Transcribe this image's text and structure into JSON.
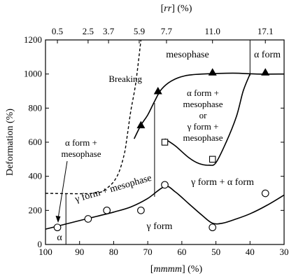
{
  "chart_data": {
    "type": "scatter",
    "title": "",
    "xlabel": "[mmmm] (%)",
    "xlabel_parts": [
      "[",
      "mmmm",
      "] (%)"
    ],
    "x2label": "[rr] (%)",
    "x2label_parts": [
      "[",
      "rr",
      "] (%)"
    ],
    "ylabel": "Deformation (%)",
    "xlim": [
      100,
      30
    ],
    "ylim": [
      0,
      1200
    ],
    "x_ticks": [
      100,
      90,
      80,
      70,
      60,
      50,
      40,
      30
    ],
    "y_ticks": [
      0,
      200,
      400,
      600,
      800,
      1000,
      1200
    ],
    "x2_ticks": [
      {
        "label": "0.5",
        "at": 96.5
      },
      {
        "label": "2.5",
        "at": 87.5
      },
      {
        "label": "3.7",
        "at": 81.5
      },
      {
        "label": "5.9",
        "at": 72.5
      },
      {
        "label": "7.7",
        "at": 64.5
      },
      {
        "label": "11.0",
        "at": 51.0
      },
      {
        "label": "17.1",
        "at": 35.5
      }
    ],
    "grid": false,
    "series": [
      {
        "marker": "circle-open",
        "points": [
          [
            96.5,
            100
          ],
          [
            87.5,
            150
          ],
          [
            82,
            200
          ],
          [
            72,
            200
          ],
          [
            65,
            350
          ],
          [
            51,
            100
          ],
          [
            35.5,
            300
          ]
        ]
      },
      {
        "marker": "square-open",
        "points": [
          [
            65,
            600
          ],
          [
            51,
            500
          ]
        ]
      },
      {
        "marker": "triangle-filled",
        "points": [
          [
            72,
            700
          ],
          [
            67,
            900
          ],
          [
            51,
            1010
          ],
          [
            35.5,
            1010
          ]
        ]
      }
    ],
    "lines": {
      "gamma_boundary": [
        [
          100,
          90
        ],
        [
          95,
          115
        ],
        [
          90,
          140
        ],
        [
          85,
          165
        ],
        [
          80,
          190
        ],
        [
          75,
          220
        ],
        [
          70,
          270
        ],
        [
          65,
          340
        ],
        [
          62,
          310
        ],
        [
          58,
          240
        ],
        [
          54,
          170
        ],
        [
          51,
          125
        ],
        [
          48,
          125
        ],
        [
          44,
          150
        ],
        [
          40,
          180
        ],
        [
          35,
          230
        ],
        [
          30,
          290
        ]
      ],
      "mesophase_boundary": [
        [
          74,
          620
        ],
        [
          72,
          700
        ],
        [
          70,
          760
        ],
        [
          68,
          840
        ],
        [
          66,
          910
        ],
        [
          63,
          960
        ],
        [
          59,
          990
        ],
        [
          54,
          1000
        ],
        [
          45,
          1005
        ],
        [
          38,
          1000
        ],
        [
          30,
          1000
        ]
      ],
      "inner_region_boundary": [
        [
          65,
          620
        ],
        [
          62,
          580
        ],
        [
          58,
          510
        ],
        [
          55,
          475
        ],
        [
          52,
          465
        ],
        [
          50,
          480
        ],
        [
          47,
          600
        ],
        [
          44,
          750
        ],
        [
          42,
          900
        ],
        [
          40,
          1000
        ]
      ],
      "breaking_dashed": [
        [
          100,
          300
        ],
        [
          86,
          300
        ],
        [
          82,
          330
        ],
        [
          79,
          400
        ],
        [
          77,
          520
        ],
        [
          76,
          640
        ],
        [
          75,
          780
        ],
        [
          73.5,
          950
        ],
        [
          72,
          1200
        ]
      ],
      "vertical_lines": [
        [
          94,
          0,
          300
        ],
        [
          68,
          280,
          830
        ],
        [
          40,
          990,
          1200
        ]
      ]
    },
    "annotations": {
      "mesophase": "mesophase",
      "alpha_form": "α form",
      "breaking": "Breaking",
      "alpha_mesophase_line1": "α form +",
      "alpha_mesophase_line2": "mesophase",
      "mixed_line1": "α form +",
      "mixed_line2": "mesophase",
      "mixed_line3": "or",
      "mixed_line4": "γ form +",
      "mixed_line5": "mesophase",
      "gamma_mesophase": "γ form + mesophase",
      "gamma_alpha": "γ form + α form",
      "gamma_form": "γ form",
      "alpha": "α"
    },
    "colors": {
      "ink": "#000000"
    }
  }
}
